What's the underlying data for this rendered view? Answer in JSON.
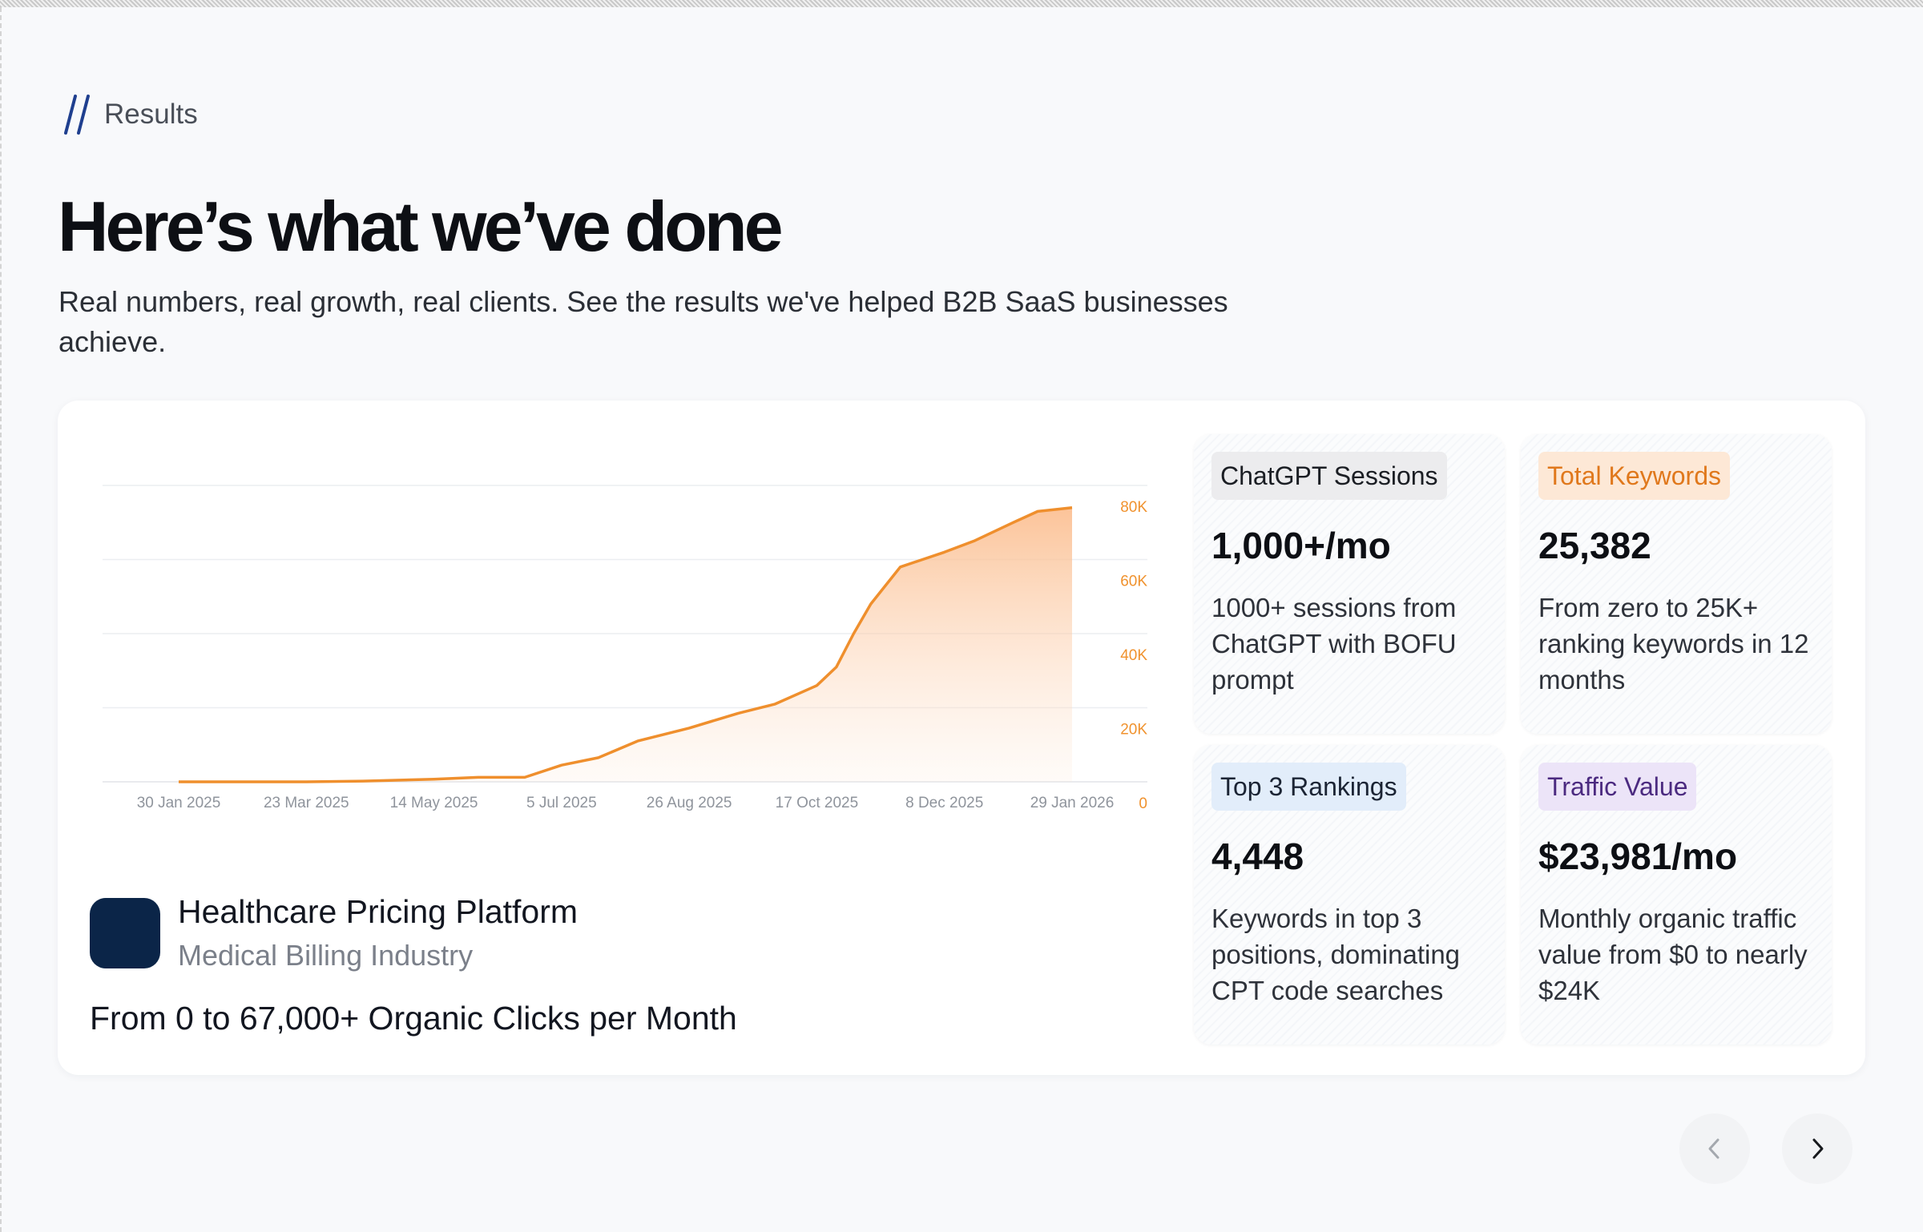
{
  "section": {
    "eyebrow": "Results",
    "title": "Here’s what we’ve done",
    "subtitle": "Real numbers, real growth, real clients. See the results we've helped B2B SaaS businesses achieve."
  },
  "case_study": {
    "client_name": "Healthcare Pricing Platform",
    "industry": "Medical Billing Industry",
    "headline": "From 0 to 67,000+ Organic Clicks per Month"
  },
  "stats": [
    {
      "tag": "ChatGPT Sessions",
      "value": "1,000+/mo",
      "description": "1000+ sessions from ChatGPT with BOFU prompt",
      "tag_bg": "#ececee",
      "tag_color": "#1b1e24"
    },
    {
      "tag": "Total Keywords",
      "value": "25,382",
      "description": "From zero to 25K+ ranking keywords in 12 months",
      "tag_bg": "#fde8d6",
      "tag_color": "#e0781c"
    },
    {
      "tag": "Top 3 Rankings",
      "value": "4,448",
      "description": "Keywords in top 3 positions, dominating CPT code searches",
      "tag_bg": "#e2edfa",
      "tag_color": "#1b2434"
    },
    {
      "tag": "Traffic Value",
      "value": "$23,981/mo",
      "description": "Monthly organic traffic value from $0 to nearly $24K",
      "tag_bg": "#ece4f8",
      "tag_color": "#4b2a80"
    }
  ],
  "navigation": {
    "prev_icon": "chevron-left-icon",
    "next_icon": "chevron-right-icon"
  },
  "colors": {
    "accent": "#f0922e",
    "logo": "#0b2548"
  },
  "chart_data": {
    "type": "area",
    "x_ticks": [
      "30 Jan 2025",
      "23 Mar 2025",
      "14 May 2025",
      "5 Jul 2025",
      "26 Aug 2025",
      "17 Oct 2025",
      "8 Dec 2025",
      "29 Jan 2026"
    ],
    "y_ticks": [
      "80K",
      "60K",
      "40K",
      "20K",
      "0"
    ],
    "ylim": [
      0,
      80000
    ],
    "grid": true,
    "x": [
      "2025-01-30",
      "2025-02-20",
      "2025-03-23",
      "2025-04-15",
      "2025-05-14",
      "2025-06-01",
      "2025-06-20",
      "2025-07-05",
      "2025-07-20",
      "2025-08-05",
      "2025-08-26",
      "2025-09-15",
      "2025-09-30",
      "2025-10-17",
      "2025-10-25",
      "2025-11-01",
      "2025-11-08",
      "2025-11-20",
      "2025-12-08",
      "2025-12-20",
      "2026-01-05",
      "2026-01-15",
      "2026-01-29"
    ],
    "values": [
      0,
      0,
      0,
      200,
      700,
      1200,
      1200,
      4500,
      6500,
      11000,
      14500,
      18500,
      21000,
      26000,
      31000,
      40000,
      48000,
      58000,
      62000,
      65000,
      70000,
      73000,
      74000
    ]
  }
}
